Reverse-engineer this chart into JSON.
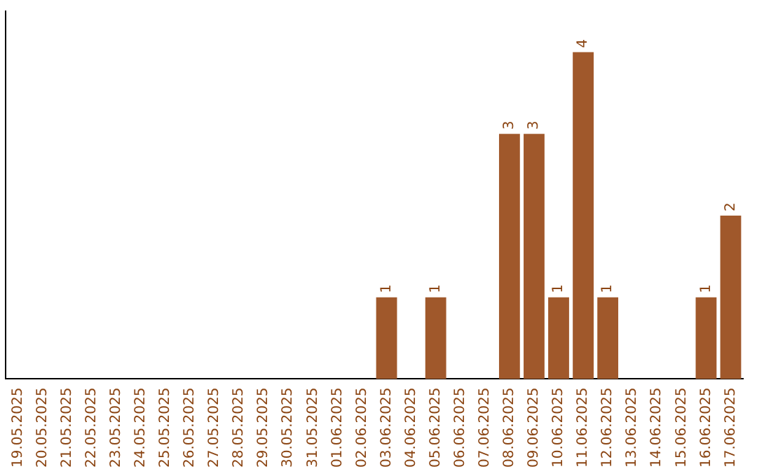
{
  "chart_data": {
    "type": "bar",
    "categories": [
      "19.05.2025",
      "20.05.2025",
      "21.05.2025",
      "22.05.2025",
      "23.05.2025",
      "24.05.2025",
      "25.05.2025",
      "26.05.2025",
      "27.05.2025",
      "28.05.2025",
      "29.05.2025",
      "30.05.2025",
      "31.05.2025",
      "01.06.2025",
      "02.06.2025",
      "03.06.2025",
      "04.06.2025",
      "05.06.2025",
      "06.06.2025",
      "07.06.2025",
      "08.06.2025",
      "09.06.2025",
      "10.06.2025",
      "11.06.2025",
      "12.06.2025",
      "13.06.2025",
      "14.06.2025",
      "15.06.2025",
      "16.06.2025",
      "17.06.2025"
    ],
    "values": [
      null,
      null,
      null,
      null,
      null,
      null,
      null,
      null,
      null,
      null,
      null,
      null,
      null,
      null,
      null,
      1,
      null,
      1,
      null,
      null,
      3,
      3,
      1,
      4,
      1,
      null,
      null,
      null,
      1,
      2
    ],
    "color": "#a0582b",
    "data_labels": true,
    "tick_labels": "x",
    "grid": false,
    "legend": false
  }
}
